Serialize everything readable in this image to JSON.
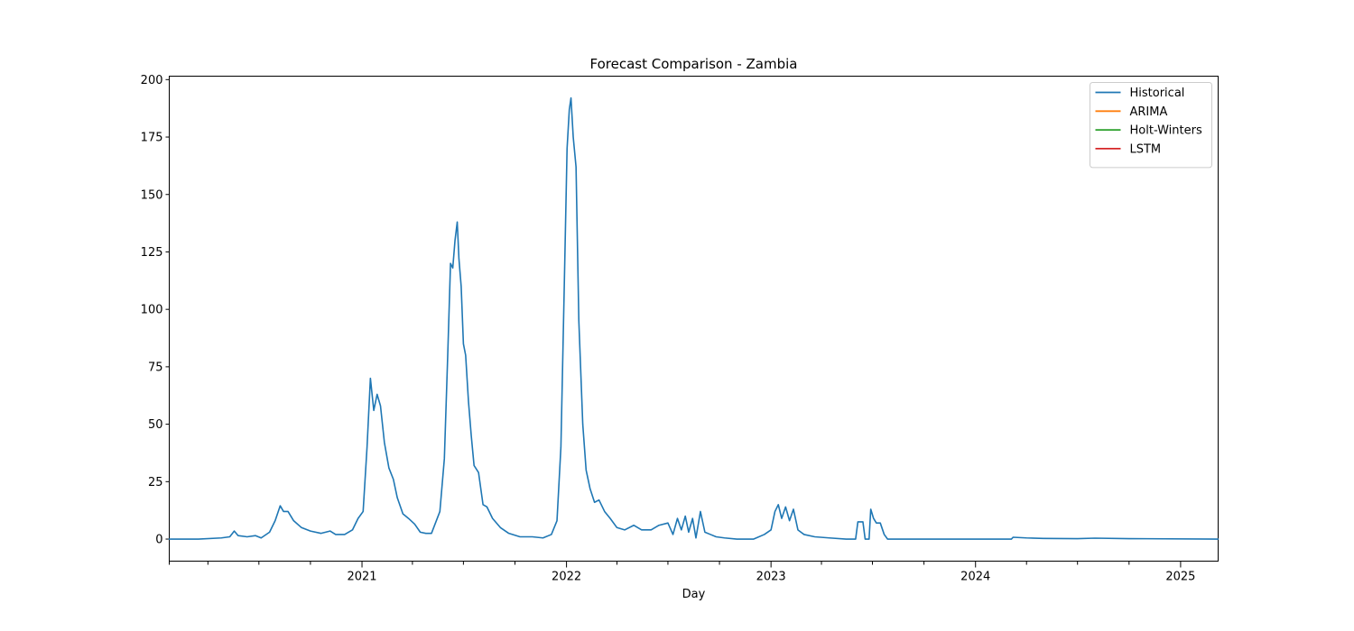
{
  "chart_data": {
    "type": "line",
    "title": "Forecast Comparison - Zambia",
    "xlabel": "Day",
    "ylabel": "",
    "x_range": [
      "2020-01-23",
      "2025-03-09"
    ],
    "ylim": [
      -9.6,
      201.5
    ],
    "y_ticks": [
      0,
      25,
      50,
      75,
      100,
      125,
      150,
      175,
      200
    ],
    "x_ticks": [
      {
        "date": "2021-01-01",
        "label": "2021"
      },
      {
        "date": "2022-01-01",
        "label": "2022"
      },
      {
        "date": "2023-01-01",
        "label": "2023"
      },
      {
        "date": "2024-01-01",
        "label": "2024"
      },
      {
        "date": "2025-01-01",
        "label": "2025"
      }
    ],
    "grid": false,
    "legend": "top-right",
    "series": [
      {
        "name": "Historical",
        "color": "#1f77b4",
        "points": [
          [
            "2020-01-23",
            0
          ],
          [
            "2020-03-15",
            0
          ],
          [
            "2020-04-25",
            0.5
          ],
          [
            "2020-05-10",
            1
          ],
          [
            "2020-05-18",
            3.5
          ],
          [
            "2020-05-25",
            1.5
          ],
          [
            "2020-06-10",
            1
          ],
          [
            "2020-06-25",
            1.5
          ],
          [
            "2020-07-05",
            0.5
          ],
          [
            "2020-07-20",
            3
          ],
          [
            "2020-07-30",
            8
          ],
          [
            "2020-08-08",
            14.5
          ],
          [
            "2020-08-14",
            12
          ],
          [
            "2020-08-22",
            12
          ],
          [
            "2020-09-01",
            8
          ],
          [
            "2020-09-15",
            5
          ],
          [
            "2020-10-01",
            3.5
          ],
          [
            "2020-10-20",
            2.5
          ],
          [
            "2020-11-05",
            3.5
          ],
          [
            "2020-11-15",
            2
          ],
          [
            "2020-12-01",
            2
          ],
          [
            "2020-12-15",
            4
          ],
          [
            "2020-12-25",
            9
          ],
          [
            "2021-01-03",
            12
          ],
          [
            "2021-01-10",
            40
          ],
          [
            "2021-01-16",
            70
          ],
          [
            "2021-01-22",
            56
          ],
          [
            "2021-01-28",
            63
          ],
          [
            "2021-02-03",
            58
          ],
          [
            "2021-02-10",
            42
          ],
          [
            "2021-02-18",
            31
          ],
          [
            "2021-02-26",
            26
          ],
          [
            "2021-03-05",
            18
          ],
          [
            "2021-03-15",
            11
          ],
          [
            "2021-03-25",
            9
          ],
          [
            "2021-04-05",
            6.5
          ],
          [
            "2021-04-15",
            3
          ],
          [
            "2021-04-25",
            2.5
          ],
          [
            "2021-05-05",
            2.5
          ],
          [
            "2021-05-20",
            12
          ],
          [
            "2021-05-28",
            35
          ],
          [
            "2021-06-03",
            80
          ],
          [
            "2021-06-08",
            120
          ],
          [
            "2021-06-12",
            118
          ],
          [
            "2021-06-16",
            130
          ],
          [
            "2021-06-20",
            138
          ],
          [
            "2021-06-23",
            122
          ],
          [
            "2021-06-27",
            110
          ],
          [
            "2021-07-01",
            85
          ],
          [
            "2021-07-05",
            80
          ],
          [
            "2021-07-10",
            60
          ],
          [
            "2021-07-15",
            45
          ],
          [
            "2021-07-20",
            32
          ],
          [
            "2021-07-28",
            29
          ],
          [
            "2021-08-05",
            15
          ],
          [
            "2021-08-12",
            14
          ],
          [
            "2021-08-22",
            9
          ],
          [
            "2021-09-05",
            5
          ],
          [
            "2021-09-20",
            2.5
          ],
          [
            "2021-10-10",
            1
          ],
          [
            "2021-11-01",
            1
          ],
          [
            "2021-11-20",
            0.5
          ],
          [
            "2021-12-05",
            2
          ],
          [
            "2021-12-15",
            8
          ],
          [
            "2021-12-22",
            40
          ],
          [
            "2021-12-28",
            110
          ],
          [
            "2022-01-02",
            170
          ],
          [
            "2022-01-06",
            187
          ],
          [
            "2022-01-09",
            192
          ],
          [
            "2022-01-13",
            175
          ],
          [
            "2022-01-18",
            162
          ],
          [
            "2022-01-23",
            95
          ],
          [
            "2022-01-30",
            50
          ],
          [
            "2022-02-05",
            30
          ],
          [
            "2022-02-12",
            22
          ],
          [
            "2022-02-20",
            16
          ],
          [
            "2022-02-28",
            17
          ],
          [
            "2022-03-10",
            12
          ],
          [
            "2022-03-20",
            9
          ],
          [
            "2022-04-01",
            5
          ],
          [
            "2022-04-15",
            4
          ],
          [
            "2022-05-01",
            6
          ],
          [
            "2022-05-15",
            4
          ],
          [
            "2022-06-01",
            4
          ],
          [
            "2022-06-15",
            6
          ],
          [
            "2022-07-01",
            7
          ],
          [
            "2022-07-10",
            2
          ],
          [
            "2022-07-18",
            9
          ],
          [
            "2022-07-25",
            4
          ],
          [
            "2022-08-01",
            10
          ],
          [
            "2022-08-07",
            3
          ],
          [
            "2022-08-14",
            9
          ],
          [
            "2022-08-20",
            0.5
          ],
          [
            "2022-08-28",
            12
          ],
          [
            "2022-09-05",
            3
          ],
          [
            "2022-09-15",
            2
          ],
          [
            "2022-09-25",
            1
          ],
          [
            "2022-10-10",
            0.5
          ],
          [
            "2022-11-01",
            0
          ],
          [
            "2022-12-01",
            0
          ],
          [
            "2022-12-20",
            2
          ],
          [
            "2023-01-01",
            4
          ],
          [
            "2023-01-08",
            12
          ],
          [
            "2023-01-14",
            15
          ],
          [
            "2023-01-20",
            9
          ],
          [
            "2023-01-27",
            14
          ],
          [
            "2023-02-03",
            8
          ],
          [
            "2023-02-10",
            13
          ],
          [
            "2023-02-18",
            4
          ],
          [
            "2023-03-01",
            2
          ],
          [
            "2023-03-20",
            1
          ],
          [
            "2023-04-15",
            0.5
          ],
          [
            "2023-05-15",
            0
          ],
          [
            "2023-06-01",
            0
          ],
          [
            "2023-06-05",
            7.5
          ],
          [
            "2023-06-14",
            7.5
          ],
          [
            "2023-06-18",
            0
          ],
          [
            "2023-06-25",
            0
          ],
          [
            "2023-06-28",
            13
          ],
          [
            "2023-07-03",
            9
          ],
          [
            "2023-07-08",
            7
          ],
          [
            "2023-07-15",
            7
          ],
          [
            "2023-07-22",
            2
          ],
          [
            "2023-07-28",
            0
          ],
          [
            "2024-03-05",
            0
          ],
          [
            "2024-03-08",
            0.8
          ],
          [
            "2024-04-01",
            0.5
          ],
          [
            "2024-05-01",
            0.3
          ],
          [
            "2024-07-01",
            0.2
          ],
          [
            "2024-08-01",
            0.4
          ],
          [
            "2024-10-01",
            0.2
          ],
          [
            "2025-03-09",
            0
          ]
        ]
      },
      {
        "name": "ARIMA",
        "color": "#ff7f0e",
        "points": []
      },
      {
        "name": "Holt-Winters",
        "color": "#2ca02c",
        "points": []
      },
      {
        "name": "LSTM",
        "color": "#d62728",
        "points": []
      }
    ]
  }
}
